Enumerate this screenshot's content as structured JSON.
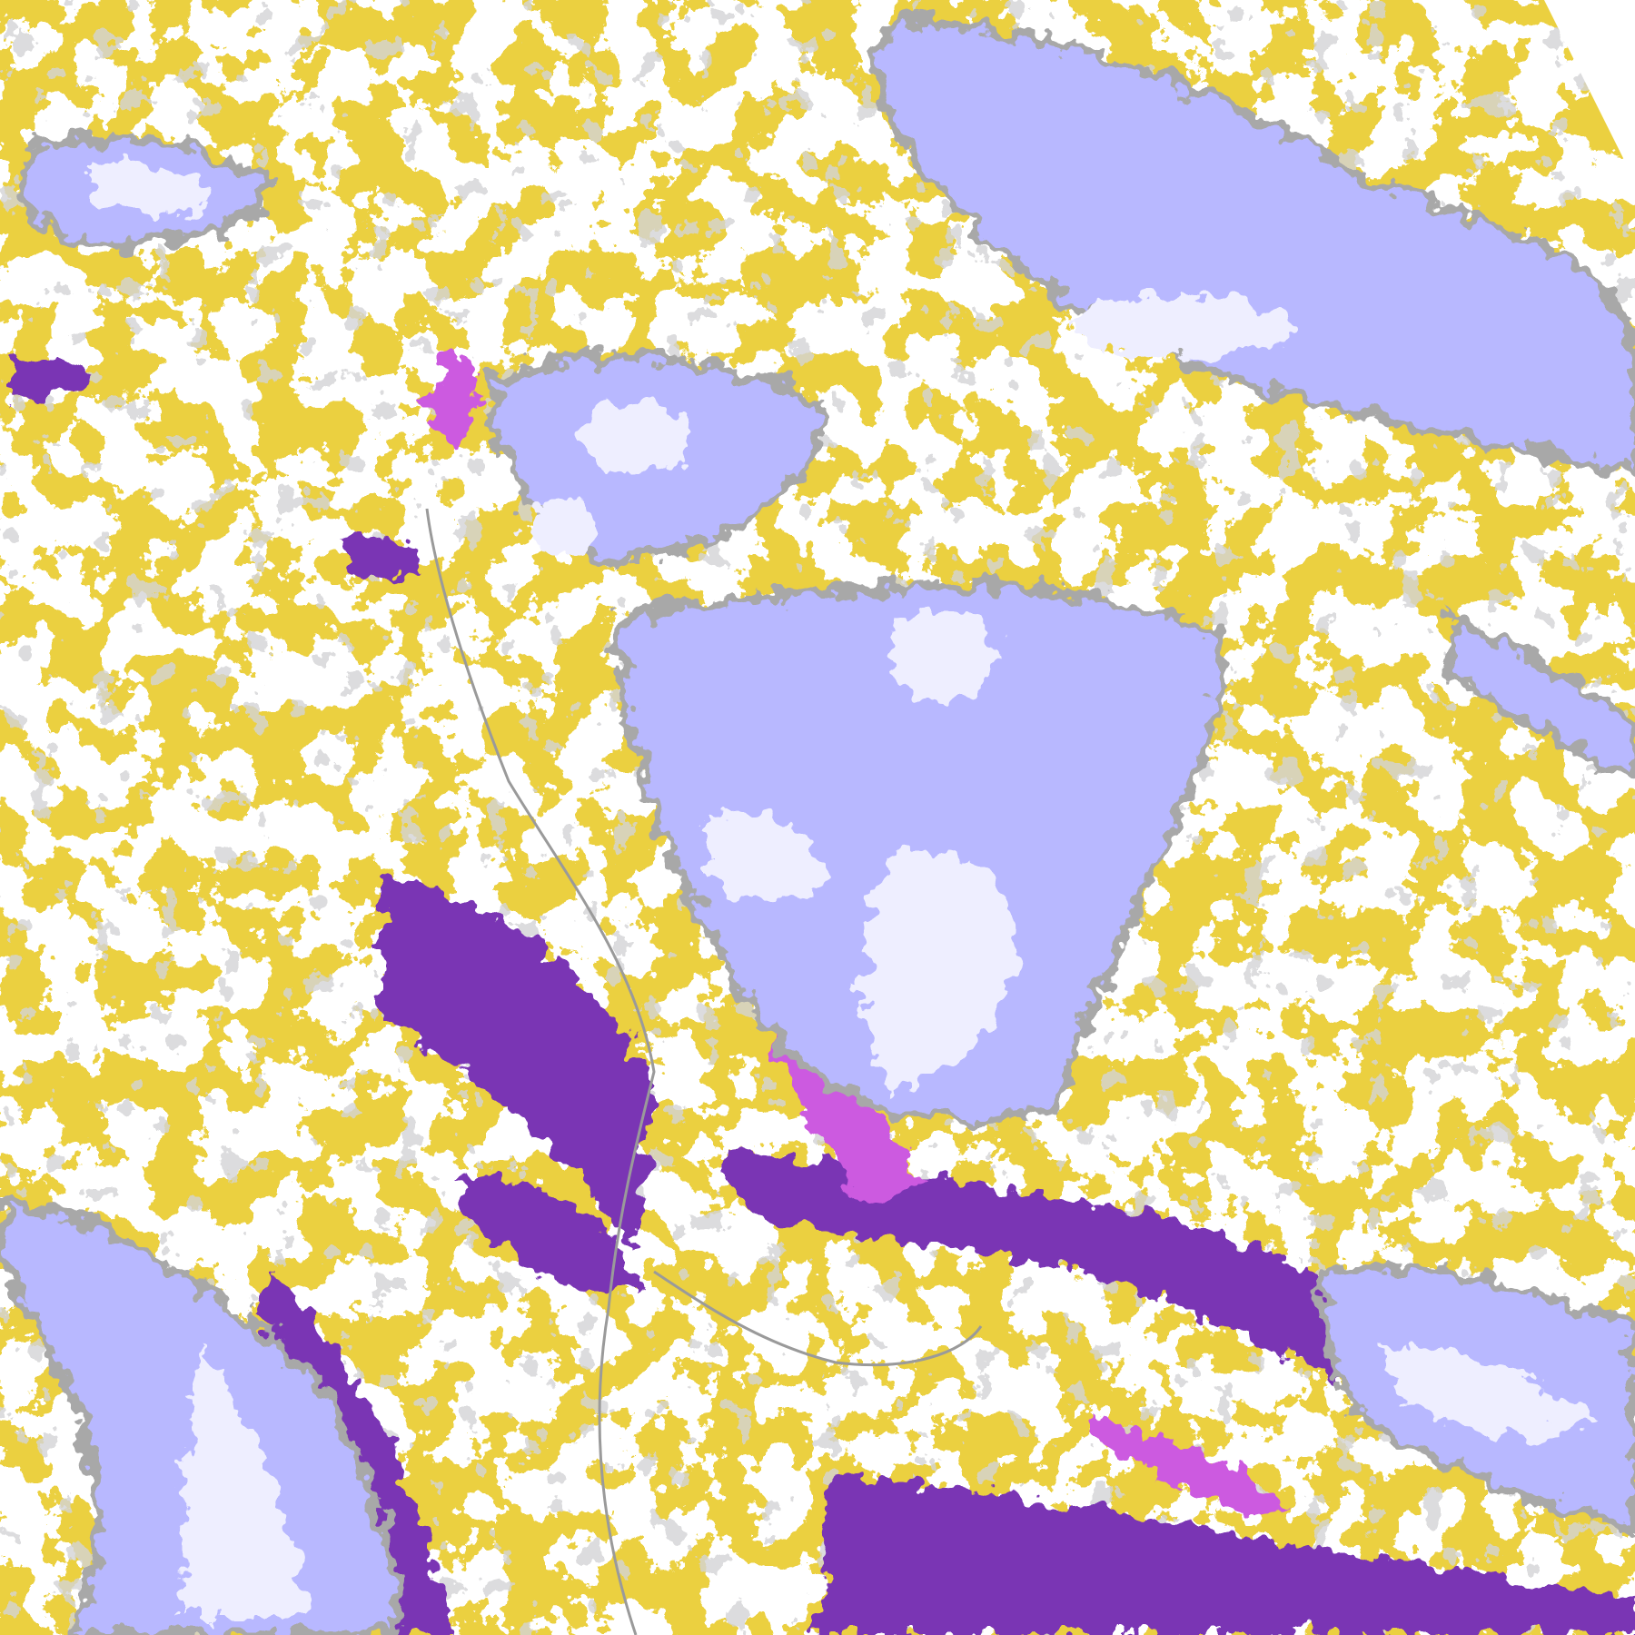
{
  "map": {
    "kind": "satellite cloud classification imagery",
    "colors": {
      "background": "#ffffff",
      "low_cloud": "#d4a20c",
      "mid_cloud_gray": "#a8a8a8",
      "high_cloud_lavender": "#b8b8ff",
      "very_high_cloud_pale": "#eeeeff",
      "thick_cloud_purple": "#7a34b4",
      "convective_magenta": "#cc5ae0",
      "coastline": "#9a9a9a"
    }
  }
}
